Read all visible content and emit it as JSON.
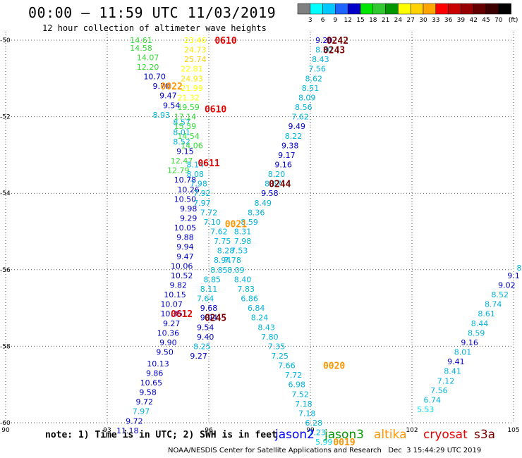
{
  "header": {
    "title": "00:00 – 11:59 UTC 11/03/2019",
    "subtitle": "12 hour collection of altimeter wave heights"
  },
  "scale": {
    "labels": [
      "3",
      "6",
      "9",
      "12",
      "15",
      "18",
      "21",
      "24",
      "27",
      "30",
      "33",
      "36",
      "39",
      "42",
      "45",
      "70"
    ],
    "unit": "(ft)",
    "colors": [
      "#808080",
      "#00ffff",
      "#00c8ff",
      "#1e64ff",
      "#0000c8",
      "#00e600",
      "#32c832",
      "#009600",
      "#ffff00",
      "#ffd200",
      "#ffa500",
      "#ff0000",
      "#c80000",
      "#960000",
      "#640000",
      "#3c0000",
      "#000000"
    ]
  },
  "axes": {
    "x_ticks": [
      {
        "value": 90,
        "label": "90"
      },
      {
        "value": 93,
        "label": "93"
      },
      {
        "value": 96,
        "label": "96"
      },
      {
        "value": 99,
        "label": "99"
      },
      {
        "value": 102,
        "label": "102"
      },
      {
        "value": 105,
        "label": "105"
      }
    ],
    "y_ticks": [
      {
        "value": -50,
        "label": "-50"
      },
      {
        "value": -52,
        "label": "-52"
      },
      {
        "value": -54,
        "label": "-54"
      },
      {
        "value": -56,
        "label": "-56"
      },
      {
        "value": -58,
        "label": "-58"
      },
      {
        "value": -60,
        "label": "-60"
      }
    ],
    "xlim": [
      90,
      105
    ],
    "ylim": [
      -60,
      -50
    ]
  },
  "chart_data": {
    "type": "scatter",
    "grid": true,
    "xlim": [
      90,
      105
    ],
    "ylim": [
      -60,
      -50
    ],
    "points": [
      {
        "lon": 94.0,
        "lat": -50.0,
        "value": "14.61",
        "color": "#32dc32"
      },
      {
        "lon": 94.0,
        "lat": -50.2,
        "value": "14.58",
        "color": "#32dc32"
      },
      {
        "lon": 94.2,
        "lat": -50.45,
        "value": "14.07",
        "color": "#32dc32"
      },
      {
        "lon": 94.2,
        "lat": -50.7,
        "value": "12.20",
        "color": "#32dc32"
      },
      {
        "lon": 94.4,
        "lat": -50.95,
        "value": "10.70",
        "color": "#0000c8"
      },
      {
        "lon": 94.6,
        "lat": -51.2,
        "value": "9.70",
        "color": "#0000c8"
      },
      {
        "lon": 94.8,
        "lat": -51.45,
        "value": "9.47",
        "color": "#0000c8"
      },
      {
        "lon": 94.9,
        "lat": -51.7,
        "value": "9.54",
        "color": "#0000c8"
      },
      {
        "lon": 94.6,
        "lat": -51.95,
        "value": "8.93",
        "color": "#00b4dc"
      },
      {
        "lon": 95.2,
        "lat": -52.15,
        "value": "8.57",
        "color": "#00b4dc"
      },
      {
        "lon": 95.2,
        "lat": -52.4,
        "value": "8.01",
        "color": "#00b4dc"
      },
      {
        "lon": 95.2,
        "lat": -52.65,
        "value": "8.52",
        "color": "#00b4dc"
      },
      {
        "lon": 95.3,
        "lat": -52.9,
        "value": "9.15",
        "color": "#0000c8"
      },
      {
        "lon": 95.2,
        "lat": -53.15,
        "value": "12.47",
        "color": "#32dc32"
      },
      {
        "lon": 95.1,
        "lat": -53.4,
        "value": "12.79",
        "color": "#32dc32"
      },
      {
        "lon": 95.3,
        "lat": -53.65,
        "value": "10.78",
        "color": "#0000c8"
      },
      {
        "lon": 95.4,
        "lat": -53.9,
        "value": "10.26",
        "color": "#0000c8"
      },
      {
        "lon": 95.3,
        "lat": -54.15,
        "value": "10.50",
        "color": "#0000c8"
      },
      {
        "lon": 95.4,
        "lat": -54.4,
        "value": "9.98",
        "color": "#0000c8"
      },
      {
        "lon": 95.4,
        "lat": -54.65,
        "value": "9.29",
        "color": "#0000c8"
      },
      {
        "lon": 95.3,
        "lat": -54.9,
        "value": "10.05",
        "color": "#0000c8"
      },
      {
        "lon": 95.3,
        "lat": -55.15,
        "value": "9.88",
        "color": "#0000c8"
      },
      {
        "lon": 95.3,
        "lat": -55.4,
        "value": "9.94",
        "color": "#0000c8"
      },
      {
        "lon": 95.3,
        "lat": -55.65,
        "value": "9.47",
        "color": "#0000c8"
      },
      {
        "lon": 95.2,
        "lat": -55.9,
        "value": "10.06",
        "color": "#0000c8"
      },
      {
        "lon": 95.2,
        "lat": -56.15,
        "value": "10.52",
        "color": "#0000c8"
      },
      {
        "lon": 95.1,
        "lat": -56.4,
        "value": "9.82",
        "color": "#0000c8"
      },
      {
        "lon": 95.0,
        "lat": -56.65,
        "value": "10.15",
        "color": "#0000c8"
      },
      {
        "lon": 94.9,
        "lat": -56.9,
        "value": "10.07",
        "color": "#0000c8"
      },
      {
        "lon": 94.9,
        "lat": -57.15,
        "value": "10.35",
        "color": "#0000c8"
      },
      {
        "lon": 94.9,
        "lat": -57.4,
        "value": "9.27",
        "color": "#0000c8"
      },
      {
        "lon": 94.8,
        "lat": -57.65,
        "value": "10.36",
        "color": "#0000c8"
      },
      {
        "lon": 94.8,
        "lat": -57.9,
        "value": "9.90",
        "color": "#0000c8"
      },
      {
        "lon": 94.7,
        "lat": -58.15,
        "value": "9.50",
        "color": "#0000c8"
      },
      {
        "lon": 94.5,
        "lat": -58.45,
        "value": "10.13",
        "color": "#0000c8"
      },
      {
        "lon": 94.4,
        "lat": -58.7,
        "value": "9.86",
        "color": "#0000c8"
      },
      {
        "lon": 94.3,
        "lat": -58.95,
        "value": "10.65",
        "color": "#0000c8"
      },
      {
        "lon": 94.2,
        "lat": -59.2,
        "value": "9.58",
        "color": "#0000c8"
      },
      {
        "lon": 94.1,
        "lat": -59.45,
        "value": "9.72",
        "color": "#0000c8"
      },
      {
        "lon": 94.0,
        "lat": -59.7,
        "value": "7.97",
        "color": "#00b4dc"
      },
      {
        "lon": 93.8,
        "lat": -59.95,
        "value": "9.72",
        "color": "#0000c8"
      },
      {
        "lon": 93.6,
        "lat": -60.2,
        "value": "11.18",
        "color": "#0000c8"
      },
      {
        "lon": 95.6,
        "lat": -50.0,
        "value": "23.46",
        "color": "#ffff00"
      },
      {
        "lon": 95.6,
        "lat": -50.25,
        "value": "24.73",
        "color": "#ffe600"
      },
      {
        "lon": 95.6,
        "lat": -50.5,
        "value": "25.74",
        "color": "#ffd200"
      },
      {
        "lon": 95.5,
        "lat": -50.75,
        "value": "22.81",
        "color": "#ffff00"
      },
      {
        "lon": 95.5,
        "lat": -51.0,
        "value": "24.93",
        "color": "#ffe600"
      },
      {
        "lon": 95.5,
        "lat": -51.25,
        "value": "21.99",
        "color": "#ffff00"
      },
      {
        "lon": 95.4,
        "lat": -51.5,
        "value": "21.32",
        "color": "#ffff00"
      },
      {
        "lon": 95.4,
        "lat": -51.75,
        "value": "19.59",
        "color": "#32dc32"
      },
      {
        "lon": 95.3,
        "lat": -52.0,
        "value": "17.14",
        "color": "#32dc32"
      },
      {
        "lon": 95.3,
        "lat": -52.25,
        "value": "15.39",
        "color": "#32dc32"
      },
      {
        "lon": 95.4,
        "lat": -52.5,
        "value": "14.54",
        "color": "#32dc32"
      },
      {
        "lon": 95.5,
        "lat": -52.75,
        "value": "14.06",
        "color": "#32dc32"
      },
      {
        "lon": 95.6,
        "lat": -53.25,
        "value": "8.14",
        "color": "#00b4dc"
      },
      {
        "lon": 95.6,
        "lat": -53.5,
        "value": "8.08",
        "color": "#00b4dc"
      },
      {
        "lon": 95.7,
        "lat": -53.75,
        "value": "7.98",
        "color": "#00b4dc"
      },
      {
        "lon": 95.8,
        "lat": -54.0,
        "value": "7.92",
        "color": "#00b4dc"
      },
      {
        "lon": 95.8,
        "lat": -54.25,
        "value": "7.97",
        "color": "#00b4dc"
      },
      {
        "lon": 96.0,
        "lat": -54.5,
        "value": "7.72",
        "color": "#00b4dc"
      },
      {
        "lon": 96.1,
        "lat": -54.75,
        "value": "7.10",
        "color": "#00b4dc"
      },
      {
        "lon": 96.3,
        "lat": -55.0,
        "value": "7.62",
        "color": "#00b4dc"
      },
      {
        "lon": 96.4,
        "lat": -55.25,
        "value": "7.75",
        "color": "#00b4dc"
      },
      {
        "lon": 96.5,
        "lat": -55.5,
        "value": "8.28",
        "color": "#00b4dc"
      },
      {
        "lon": 96.4,
        "lat": -55.75,
        "value": "8.94",
        "color": "#00b4dc"
      },
      {
        "lon": 96.3,
        "lat": -56.0,
        "value": "8.85",
        "color": "#00b4dc"
      },
      {
        "lon": 96.1,
        "lat": -56.25,
        "value": "8.85",
        "color": "#00b4dc"
      },
      {
        "lon": 96.0,
        "lat": -56.5,
        "value": "8.11",
        "color": "#00b4dc"
      },
      {
        "lon": 95.9,
        "lat": -56.75,
        "value": "7.64",
        "color": "#00b4dc"
      },
      {
        "lon": 96.0,
        "lat": -57.0,
        "value": "9.68",
        "color": "#0000c8"
      },
      {
        "lon": 96.0,
        "lat": -57.25,
        "value": "9.94",
        "color": "#0000c8"
      },
      {
        "lon": 95.9,
        "lat": -57.5,
        "value": "9.54",
        "color": "#0000c8"
      },
      {
        "lon": 95.9,
        "lat": -57.75,
        "value": "9.40",
        "color": "#0000c8"
      },
      {
        "lon": 95.8,
        "lat": -58.0,
        "value": "8.25",
        "color": "#00b4dc"
      },
      {
        "lon": 95.7,
        "lat": -58.25,
        "value": "9.27",
        "color": "#0000c8"
      },
      {
        "lon": 99.4,
        "lat": -50.0,
        "value": "9.20",
        "color": "#0000c8"
      },
      {
        "lon": 99.4,
        "lat": -50.25,
        "value": "8.30",
        "color": "#00b4dc"
      },
      {
        "lon": 99.3,
        "lat": -50.5,
        "value": "8.43",
        "color": "#00b4dc"
      },
      {
        "lon": 99.2,
        "lat": -50.75,
        "value": "7.56",
        "color": "#00b4dc"
      },
      {
        "lon": 99.1,
        "lat": -51.0,
        "value": "8.62",
        "color": "#00b4dc"
      },
      {
        "lon": 99.0,
        "lat": -51.25,
        "value": "8.51",
        "color": "#00b4dc"
      },
      {
        "lon": 98.9,
        "lat": -51.5,
        "value": "8.09",
        "color": "#00b4dc"
      },
      {
        "lon": 98.8,
        "lat": -51.75,
        "value": "8.56",
        "color": "#00b4dc"
      },
      {
        "lon": 98.7,
        "lat": -52.0,
        "value": "7.62",
        "color": "#00b4dc"
      },
      {
        "lon": 98.6,
        "lat": -52.25,
        "value": "9.49",
        "color": "#0000c8"
      },
      {
        "lon": 98.5,
        "lat": -52.5,
        "value": "8.22",
        "color": "#00b4dc"
      },
      {
        "lon": 98.4,
        "lat": -52.75,
        "value": "9.38",
        "color": "#0000c8"
      },
      {
        "lon": 98.3,
        "lat": -53.0,
        "value": "9.17",
        "color": "#0000c8"
      },
      {
        "lon": 98.2,
        "lat": -53.25,
        "value": "9.16",
        "color": "#0000c8"
      },
      {
        "lon": 98.0,
        "lat": -53.5,
        "value": "8.20",
        "color": "#00b4dc"
      },
      {
        "lon": 97.9,
        "lat": -53.75,
        "value": "8.67",
        "color": "#00b4dc"
      },
      {
        "lon": 97.8,
        "lat": -54.0,
        "value": "9.58",
        "color": "#0000c8"
      },
      {
        "lon": 97.6,
        "lat": -54.25,
        "value": "8.49",
        "color": "#00b4dc"
      },
      {
        "lon": 97.4,
        "lat": -54.5,
        "value": "8.36",
        "color": "#00b4dc"
      },
      {
        "lon": 97.2,
        "lat": -54.75,
        "value": "8.59",
        "color": "#00b4dc"
      },
      {
        "lon": 97.0,
        "lat": -55.0,
        "value": "8.31",
        "color": "#00b4dc"
      },
      {
        "lon": 97.0,
        "lat": -55.25,
        "value": "7.98",
        "color": "#00b4dc"
      },
      {
        "lon": 96.9,
        "lat": -55.5,
        "value": "7.53",
        "color": "#00b4dc"
      },
      {
        "lon": 96.7,
        "lat": -55.75,
        "value": "7.78",
        "color": "#00b4dc"
      },
      {
        "lon": 96.8,
        "lat": -56.0,
        "value": "8.09",
        "color": "#00b4dc"
      },
      {
        "lon": 97.0,
        "lat": -56.25,
        "value": "8.40",
        "color": "#00b4dc"
      },
      {
        "lon": 97.1,
        "lat": -56.5,
        "value": "7.83",
        "color": "#00b4dc"
      },
      {
        "lon": 97.2,
        "lat": -56.75,
        "value": "6.86",
        "color": "#00b4dc"
      },
      {
        "lon": 97.4,
        "lat": -57.0,
        "value": "6.84",
        "color": "#00b4dc"
      },
      {
        "lon": 97.5,
        "lat": -57.25,
        "value": "8.24",
        "color": "#00b4dc"
      },
      {
        "lon": 97.7,
        "lat": -57.5,
        "value": "8.43",
        "color": "#00b4dc"
      },
      {
        "lon": 97.8,
        "lat": -57.75,
        "value": "7.80",
        "color": "#00b4dc"
      },
      {
        "lon": 98.0,
        "lat": -58.0,
        "value": "7.35",
        "color": "#00b4dc"
      },
      {
        "lon": 98.1,
        "lat": -58.25,
        "value": "7.25",
        "color": "#00b4dc"
      },
      {
        "lon": 98.3,
        "lat": -58.5,
        "value": "7.66",
        "color": "#00b4dc"
      },
      {
        "lon": 98.5,
        "lat": -58.75,
        "value": "7.72",
        "color": "#00b4dc"
      },
      {
        "lon": 98.6,
        "lat": -59.0,
        "value": "6.98",
        "color": "#00b4dc"
      },
      {
        "lon": 98.7,
        "lat": -59.25,
        "value": "7.52",
        "color": "#00b4dc"
      },
      {
        "lon": 98.8,
        "lat": -59.5,
        "value": "7.18",
        "color": "#00b4dc"
      },
      {
        "lon": 98.9,
        "lat": -59.75,
        "value": "7.18",
        "color": "#00b4dc"
      },
      {
        "lon": 99.1,
        "lat": -60.0,
        "value": "6.28",
        "color": "#00b4dc"
      },
      {
        "lon": 99.2,
        "lat": -60.25,
        "value": "7.23",
        "color": "#00b4dc"
      },
      {
        "lon": 99.4,
        "lat": -60.5,
        "value": "5.99",
        "color": "#00dcf0"
      },
      {
        "lon": 105.2,
        "lat": -55.95,
        "value": "8.",
        "color": "#00b4dc"
      },
      {
        "lon": 105.0,
        "lat": -56.15,
        "value": "9.1",
        "color": "#0000c8"
      },
      {
        "lon": 104.8,
        "lat": -56.4,
        "value": "9.02",
        "color": "#0000c8"
      },
      {
        "lon": 104.6,
        "lat": -56.65,
        "value": "8.52",
        "color": "#00b4dc"
      },
      {
        "lon": 104.4,
        "lat": -56.9,
        "value": "8.74",
        "color": "#00b4dc"
      },
      {
        "lon": 104.2,
        "lat": -57.15,
        "value": "8.61",
        "color": "#00b4dc"
      },
      {
        "lon": 104.0,
        "lat": -57.4,
        "value": "8.44",
        "color": "#00b4dc"
      },
      {
        "lon": 103.9,
        "lat": -57.65,
        "value": "8.59",
        "color": "#00b4dc"
      },
      {
        "lon": 103.7,
        "lat": -57.9,
        "value": "9.16",
        "color": "#0000c8"
      },
      {
        "lon": 103.5,
        "lat": -58.15,
        "value": "8.01",
        "color": "#00b4dc"
      },
      {
        "lon": 103.3,
        "lat": -58.4,
        "value": "9.41",
        "color": "#0000c8"
      },
      {
        "lon": 103.2,
        "lat": -58.65,
        "value": "8.41",
        "color": "#00b4dc"
      },
      {
        "lon": 103.0,
        "lat": -58.9,
        "value": "7.12",
        "color": "#00b4dc"
      },
      {
        "lon": 102.8,
        "lat": -59.15,
        "value": "7.56",
        "color": "#00b4dc"
      },
      {
        "lon": 102.6,
        "lat": -59.4,
        "value": "6.74",
        "color": "#00b4dc"
      },
      {
        "lon": 102.4,
        "lat": -59.65,
        "value": "5.53",
        "color": "#00dcf0"
      }
    ],
    "time_labels": [
      {
        "lon": 96.5,
        "lat": -50.0,
        "text": "0610",
        "color": "#e60000"
      },
      {
        "lon": 99.8,
        "lat": -50.0,
        "text": "0242",
        "color": "#7a0000"
      },
      {
        "lon": 99.7,
        "lat": -50.25,
        "text": "0243",
        "color": "#7a0000"
      },
      {
        "lon": 94.9,
        "lat": -51.2,
        "value_note": "",
        "text": "0022",
        "color": "#ff9600"
      },
      {
        "lon": 96.2,
        "lat": -51.8,
        "text": "0610",
        "color": "#e60000"
      },
      {
        "lon": 96.0,
        "lat": -53.2,
        "text": "0611",
        "color": "#e60000"
      },
      {
        "lon": 98.1,
        "lat": -53.75,
        "text": "0244",
        "color": "#7a0000"
      },
      {
        "lon": 96.8,
        "lat": -54.8,
        "text": "0021",
        "color": "#ff9600"
      },
      {
        "lon": 95.2,
        "lat": -57.15,
        "text": "0612",
        "color": "#e60000"
      },
      {
        "lon": 96.2,
        "lat": -57.25,
        "text": "0245",
        "color": "#7a0000"
      },
      {
        "lon": 99.7,
        "lat": -58.5,
        "text": "0020",
        "color": "#ff9600"
      },
      {
        "lon": 100.0,
        "lat": -60.5,
        "text": "0019",
        "color": "#ff9600"
      }
    ]
  },
  "footer": {
    "note": "note: 1) Time is in UTC; 2) SWH is in feet",
    "satellites": [
      {
        "name": "jason2",
        "color": "#0000ff"
      },
      {
        "name": "jason3",
        "color": "#009600"
      },
      {
        "name": "altika",
        "color": "#ff9600"
      },
      {
        "name": "cryosat",
        "color": "#e60000"
      },
      {
        "name": "s3a",
        "color": "#7a0000"
      }
    ],
    "credit": "NOAA/NESDIS Center for Satellite Applications and Research   Dec  3 15:44:29 UTC 2019"
  }
}
